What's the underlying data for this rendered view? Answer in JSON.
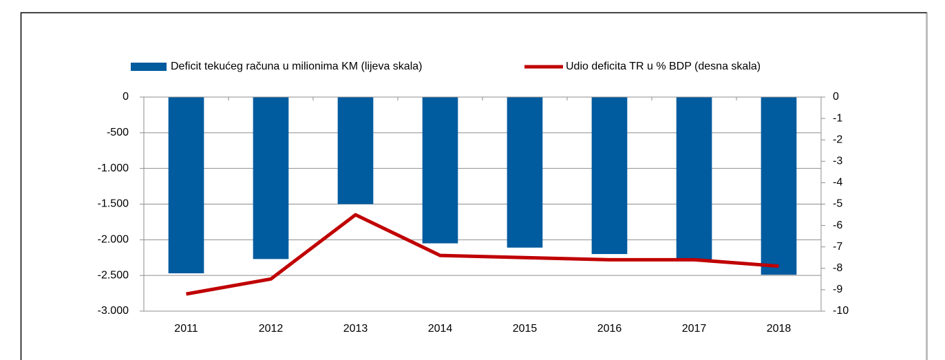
{
  "chart_data": {
    "type": "bar-line",
    "categories": [
      "2011",
      "2012",
      "2013",
      "2014",
      "2015",
      "2016",
      "2017",
      "2018"
    ],
    "series": [
      {
        "name": "Deficit tekućeg računa u milionima KM (lijeva skala)",
        "type": "bar",
        "color": "#005b9f",
        "values": [
          -2470,
          -2270,
          -1500,
          -2050,
          -2110,
          -2200,
          -2290,
          -2490
        ]
      },
      {
        "name": "Udio deficita TR u % BDP (desna skala)",
        "type": "line",
        "axis": "y2",
        "color": "#c00000",
        "values": [
          -9.2,
          -8.5,
          -5.5,
          -7.4,
          -7.5,
          -7.6,
          -7.6,
          -7.9
        ]
      }
    ],
    "ylim": [
      -3000,
      0
    ],
    "yticks": [
      0,
      -500,
      {
        "value": -1000,
        "label": "-1.000"
      },
      {
        "value": -1500,
        "label": "-1.500"
      },
      {
        "value": -2000,
        "label": "-2.000"
      },
      {
        "value": -2500,
        "label": "-2.500"
      },
      {
        "value": -3000,
        "label": "-3.000"
      }
    ],
    "y2lim": [
      -10,
      0
    ],
    "y2ticks": [
      0,
      -1,
      -2,
      -3,
      -4,
      -5,
      -6,
      -7,
      -8,
      -9,
      -10
    ],
    "grid": true,
    "legend": "top"
  }
}
